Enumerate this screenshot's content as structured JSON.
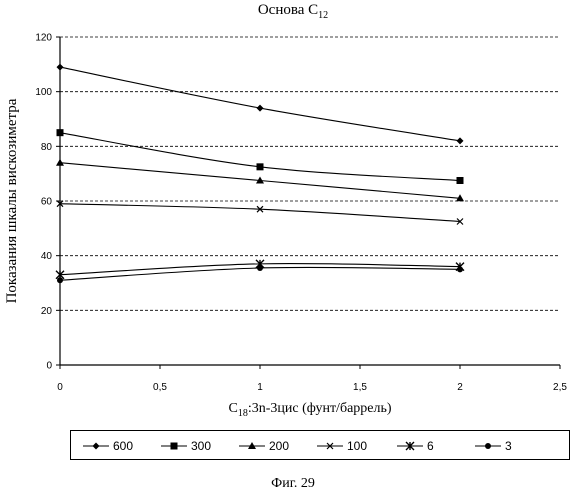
{
  "chart_data": {
    "type": "line",
    "title_main": "Основа C",
    "title_sub": "12",
    "xlabel_prefix": "C",
    "xlabel_sub": "18",
    "xlabel_rest": ":3n-3цис (фунт/баррель)",
    "ylabel": "Показания шкалы вискозиметра",
    "xlim": [
      0,
      2.5
    ],
    "ylim": [
      0,
      120
    ],
    "xticks": [
      "0",
      "0,5",
      "1",
      "1,5",
      "2",
      "2,5"
    ],
    "yticks": [
      "0",
      "20",
      "40",
      "60",
      "80",
      "100",
      "120"
    ],
    "grid": "horizontal-dashed",
    "legend_position": "bottom",
    "series": [
      {
        "name": "600",
        "marker": "diamond",
        "x": [
          0,
          1,
          2
        ],
        "y": [
          109,
          94,
          82
        ]
      },
      {
        "name": "300",
        "marker": "square",
        "x": [
          0,
          1,
          2
        ],
        "y": [
          85,
          72.5,
          67.5
        ]
      },
      {
        "name": "200",
        "marker": "triangle",
        "x": [
          0,
          1,
          2
        ],
        "y": [
          74,
          67.5,
          61
        ]
      },
      {
        "name": "100",
        "marker": "x",
        "x": [
          0,
          1,
          2
        ],
        "y": [
          59,
          57,
          52.5
        ]
      },
      {
        "name": "6",
        "marker": "zh",
        "x": [
          0,
          1,
          2
        ],
        "y": [
          33,
          37,
          36
        ]
      },
      {
        "name": "3",
        "marker": "circle",
        "x": [
          0,
          1,
          2
        ],
        "y": [
          31,
          35.5,
          35
        ]
      }
    ]
  },
  "caption": "Фиг. 29"
}
